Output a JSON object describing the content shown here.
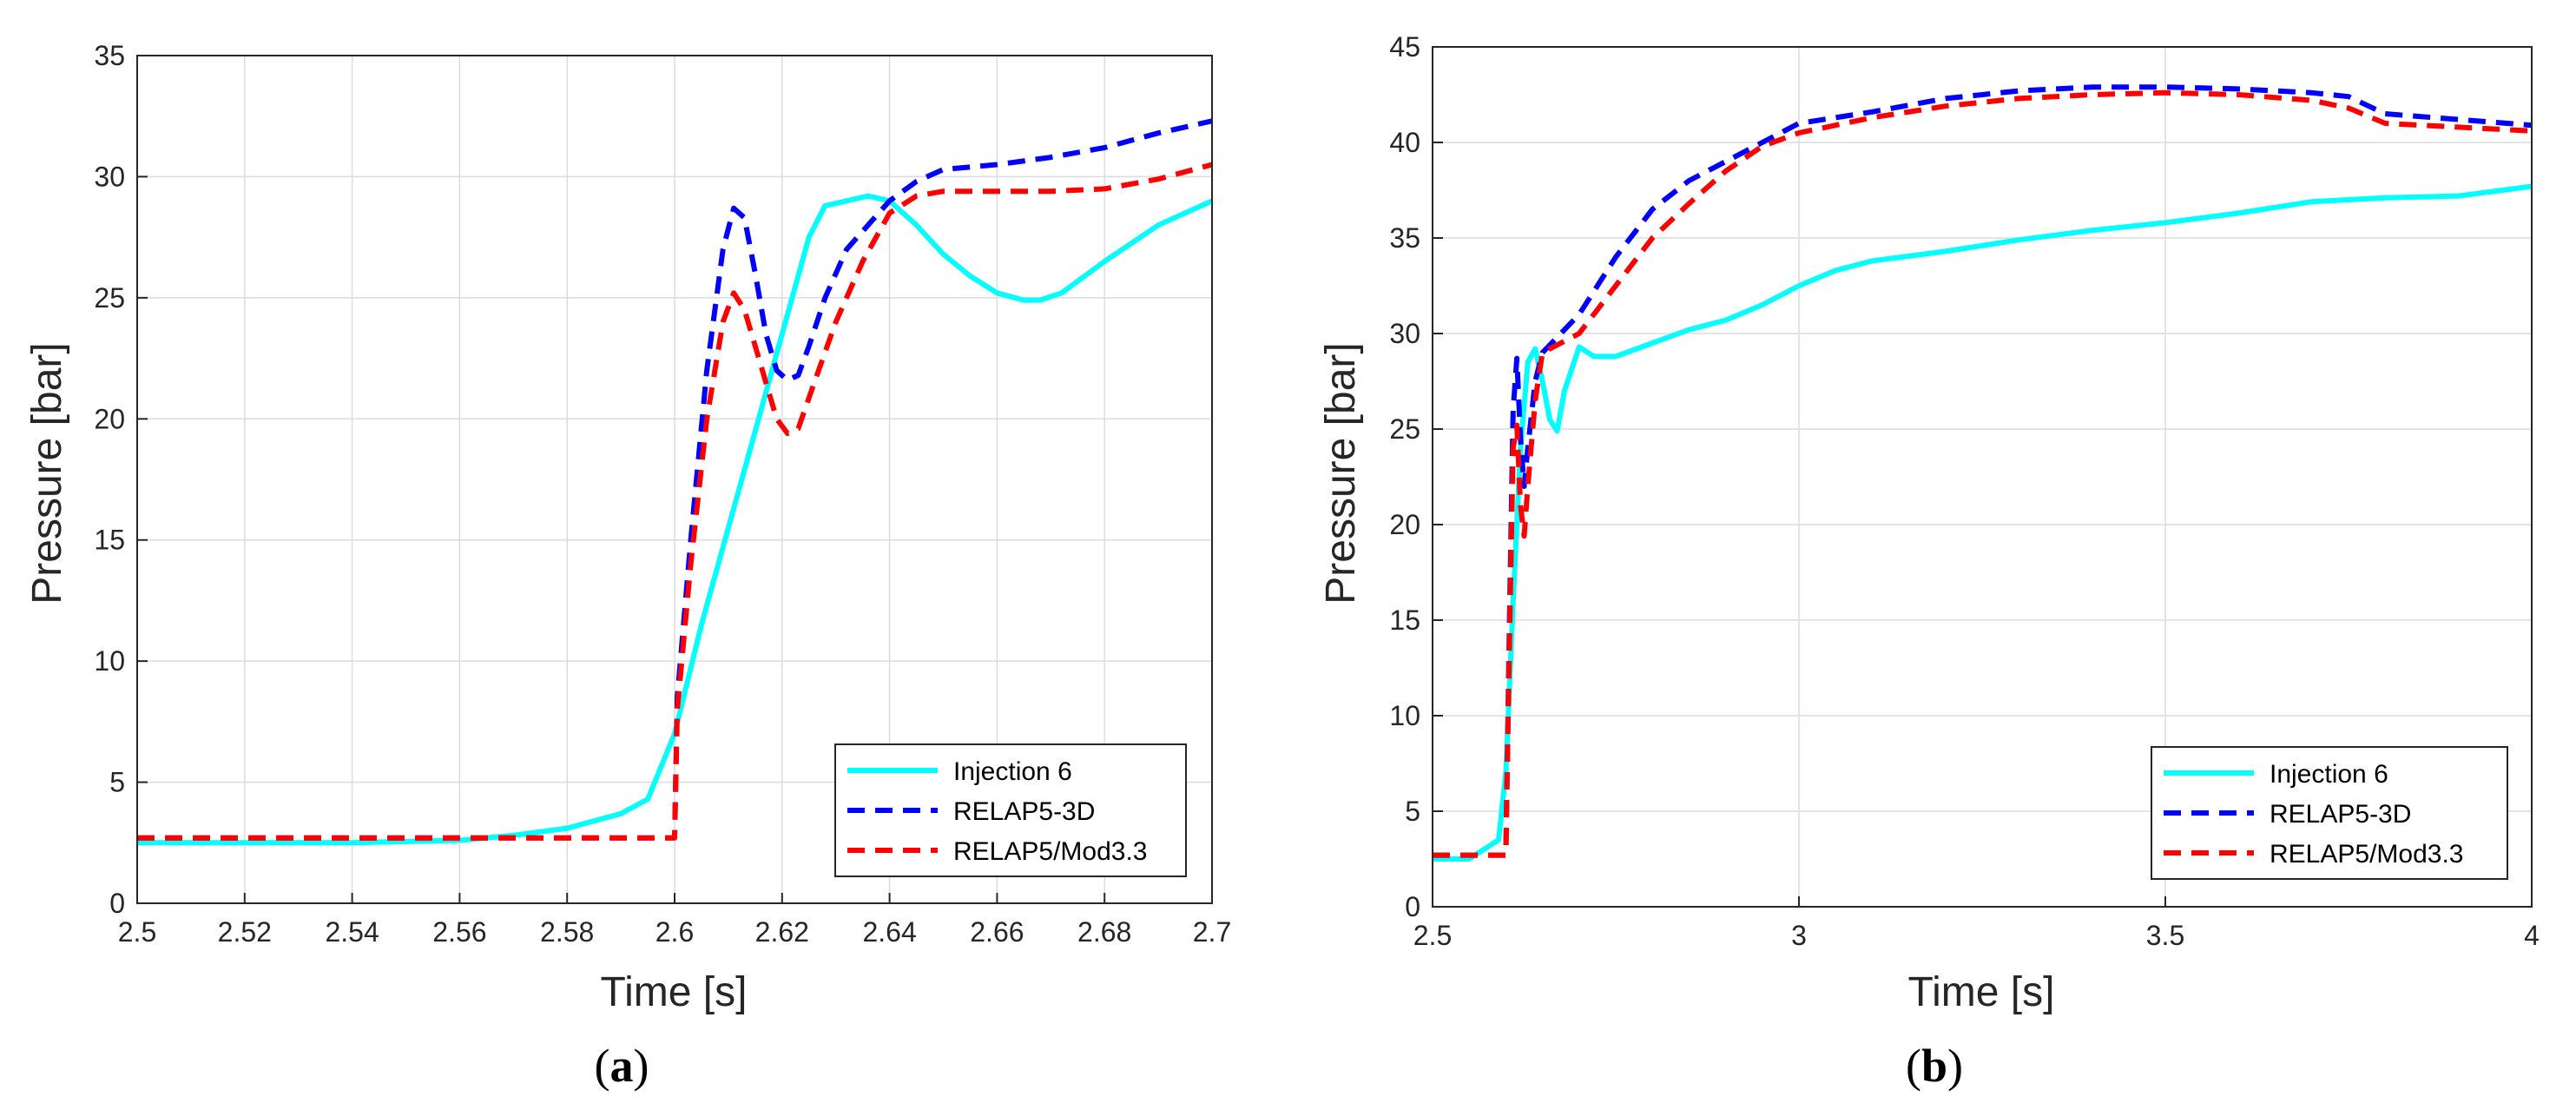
{
  "chart_data": [
    {
      "type": "line",
      "panel_label": "a",
      "xlabel": "Time [s]",
      "ylabel": "Pressure [bar]",
      "xlim": [
        2.5,
        2.7
      ],
      "ylim": [
        0,
        35
      ],
      "xticks": [
        2.5,
        2.52,
        2.54,
        2.56,
        2.58,
        2.6,
        2.62,
        2.64,
        2.66,
        2.68,
        2.7
      ],
      "xtick_labels": [
        "2.5",
        "2.52",
        "2.54",
        "2.56",
        "2.58",
        "2.6",
        "2.62",
        "2.64",
        "2.66",
        "2.68",
        "2.7"
      ],
      "yticks": [
        0,
        5,
        10,
        15,
        20,
        25,
        30,
        35
      ],
      "ytick_labels": [
        "0",
        "5",
        "10",
        "15",
        "20",
        "25",
        "30",
        "35"
      ],
      "grid": true,
      "legend_position": "bottom-right",
      "series": [
        {
          "name": "Injection 6",
          "color": "#00FFFF",
          "style": "solid",
          "x": [
            2.5,
            2.52,
            2.54,
            2.56,
            2.57,
            2.58,
            2.59,
            2.595,
            2.6,
            2.605,
            2.61,
            2.615,
            2.62,
            2.625,
            2.628,
            2.632,
            2.636,
            2.64,
            2.645,
            2.65,
            2.655,
            2.66,
            2.665,
            2.668,
            2.672,
            2.68,
            2.69,
            2.7
          ],
          "y": [
            2.5,
            2.5,
            2.5,
            2.6,
            2.8,
            3.1,
            3.7,
            4.3,
            7.0,
            11.5,
            15.5,
            19.5,
            23.5,
            27.5,
            28.8,
            29.0,
            29.2,
            29.0,
            28.0,
            26.8,
            25.9,
            25.2,
            24.9,
            24.9,
            25.2,
            26.5,
            28.0,
            29.0
          ]
        },
        {
          "name": "RELAP5-3D",
          "color": "#0000FF",
          "style": "dashed",
          "x": [
            2.5,
            2.55,
            2.6,
            2.6005,
            2.603,
            2.606,
            2.609,
            2.611,
            2.613,
            2.615,
            2.617,
            2.619,
            2.621,
            2.623,
            2.625,
            2.628,
            2.632,
            2.636,
            2.64,
            2.645,
            2.65,
            2.66,
            2.67,
            2.68,
            2.69,
            2.7
          ],
          "y": [
            2.7,
            2.7,
            2.7,
            8.5,
            15.0,
            22.0,
            27.0,
            28.7,
            28.3,
            26.0,
            23.5,
            22.0,
            21.6,
            21.8,
            23.0,
            25.0,
            27.0,
            28.0,
            29.0,
            29.8,
            30.3,
            30.5,
            30.8,
            31.2,
            31.8,
            32.3
          ]
        },
        {
          "name": "RELAP5/Mod3.3",
          "color": "#FF0000",
          "style": "dashed",
          "x": [
            2.5,
            2.55,
            2.6,
            2.6005,
            2.603,
            2.606,
            2.609,
            2.611,
            2.613,
            2.615,
            2.617,
            2.619,
            2.621,
            2.623,
            2.626,
            2.63,
            2.635,
            2.64,
            2.645,
            2.65,
            2.66,
            2.67,
            2.68,
            2.69,
            2.7
          ],
          "y": [
            2.7,
            2.7,
            2.7,
            8.0,
            14.0,
            20.0,
            24.0,
            25.2,
            24.5,
            23.0,
            21.5,
            20.0,
            19.4,
            19.6,
            21.5,
            24.0,
            26.5,
            28.5,
            29.2,
            29.4,
            29.4,
            29.4,
            29.5,
            29.9,
            30.5
          ]
        }
      ]
    },
    {
      "type": "line",
      "panel_label": "b",
      "xlabel": "Time [s]",
      "ylabel": "Pressure [bar]",
      "xlim": [
        2.5,
        4.0
      ],
      "ylim": [
        0,
        45
      ],
      "xticks": [
        2.5,
        3.0,
        3.5,
        4.0
      ],
      "xtick_labels": [
        "2.5",
        "3",
        "3.5",
        "4"
      ],
      "yticks": [
        0,
        5,
        10,
        15,
        20,
        25,
        30,
        35,
        40,
        45
      ],
      "ytick_labels": [
        "0",
        "5",
        "10",
        "15",
        "20",
        "25",
        "30",
        "35",
        "40",
        "45"
      ],
      "grid": true,
      "legend_position": "bottom-right",
      "series": [
        {
          "name": "Injection 6",
          "color": "#00FFFF",
          "style": "solid",
          "x": [
            2.5,
            2.55,
            2.59,
            2.6,
            2.61,
            2.62,
            2.63,
            2.64,
            2.65,
            2.66,
            2.67,
            2.68,
            2.7,
            2.72,
            2.75,
            2.8,
            2.85,
            2.9,
            2.95,
            3.0,
            3.05,
            3.1,
            3.2,
            3.3,
            3.4,
            3.5,
            3.6,
            3.7,
            3.8,
            3.9,
            4.0
          ],
          "y": [
            2.5,
            2.5,
            3.5,
            7.0,
            16.0,
            24.0,
            28.5,
            29.2,
            27.5,
            25.5,
            24.9,
            27.0,
            29.3,
            28.8,
            28.8,
            29.5,
            30.2,
            30.7,
            31.5,
            32.5,
            33.3,
            33.8,
            34.3,
            34.9,
            35.4,
            35.8,
            36.3,
            36.9,
            37.1,
            37.2,
            37.7
          ]
        },
        {
          "name": "RELAP5-3D",
          "color": "#0000FF",
          "style": "dashed",
          "x": [
            2.5,
            2.55,
            2.6,
            2.605,
            2.61,
            2.615,
            2.62,
            2.625,
            2.63,
            2.64,
            2.65,
            2.7,
            2.75,
            2.8,
            2.85,
            2.9,
            2.95,
            3.0,
            3.1,
            3.2,
            3.3,
            3.4,
            3.5,
            3.6,
            3.7,
            3.75,
            3.8,
            3.9,
            4.0
          ],
          "y": [
            2.7,
            2.7,
            2.7,
            15.0,
            26.0,
            28.7,
            24.5,
            22.0,
            24.0,
            27.5,
            29.0,
            31.0,
            34.0,
            36.5,
            38.0,
            39.0,
            40.0,
            41.0,
            41.6,
            42.3,
            42.7,
            42.9,
            42.9,
            42.8,
            42.6,
            42.4,
            41.5,
            41.2,
            40.9
          ]
        },
        {
          "name": "RELAP5/Mod3.3",
          "color": "#FF0000",
          "style": "dashed",
          "x": [
            2.5,
            2.55,
            2.6,
            2.605,
            2.61,
            2.615,
            2.62,
            2.625,
            2.63,
            2.64,
            2.65,
            2.7,
            2.75,
            2.8,
            2.85,
            2.9,
            2.95,
            3.0,
            3.1,
            3.2,
            3.3,
            3.4,
            3.5,
            3.6,
            3.7,
            3.75,
            3.8,
            3.9,
            4.0
          ],
          "y": [
            2.7,
            2.7,
            2.7,
            14.0,
            24.0,
            25.2,
            21.0,
            19.4,
            22.0,
            26.5,
            29.0,
            30.0,
            32.5,
            35.0,
            36.8,
            38.5,
            39.8,
            40.5,
            41.3,
            41.9,
            42.3,
            42.5,
            42.6,
            42.5,
            42.2,
            41.8,
            41.0,
            40.8,
            40.6
          ]
        }
      ]
    }
  ],
  "captions": [
    {
      "open": "(",
      "letter": "a",
      "close": ")"
    },
    {
      "open": "(",
      "letter": "b",
      "close": ")"
    }
  ]
}
